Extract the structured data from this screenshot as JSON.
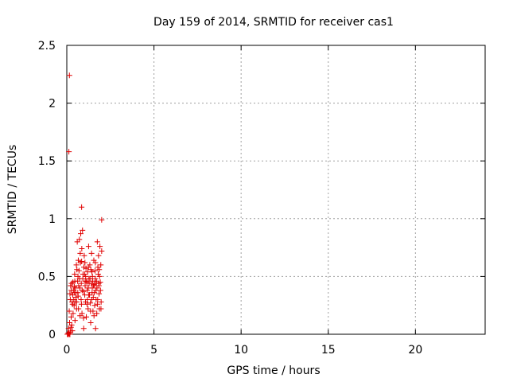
{
  "chart_data": {
    "type": "scatter",
    "title": "Day 159 of 2014, SRMTID for receiver cas1",
    "xlabel": "GPS time / hours",
    "ylabel": "SRMTID / TECUs",
    "xlim": [
      0,
      24
    ],
    "ylim": [
      0,
      2.5
    ],
    "xticks": [
      0,
      5,
      10,
      15,
      20
    ],
    "yticks": [
      0,
      0.5,
      1,
      1.5,
      2,
      2.5
    ],
    "xtick_labels": [
      "0",
      "5",
      "10",
      "15",
      "20"
    ],
    "ytick_labels": [
      "0",
      "0.5",
      "1",
      "1.5",
      "2",
      "2.5"
    ],
    "grid": true,
    "marker": "+",
    "color": "#e00000",
    "series": [
      {
        "name": "SRMTID",
        "points": [
          [
            0.15,
            2.24
          ],
          [
            0.12,
            1.58
          ],
          [
            0.85,
            1.1
          ],
          [
            2.0,
            0.99
          ],
          [
            0.03,
            0.0
          ],
          [
            0.06,
            0.0
          ],
          [
            0.09,
            0.0
          ],
          [
            0.12,
            0.01
          ],
          [
            0.15,
            0.0
          ],
          [
            0.18,
            0.0
          ],
          [
            0.21,
            0.02
          ],
          [
            0.08,
            0.01
          ],
          [
            0.1,
            0.05
          ],
          [
            0.14,
            0.2
          ],
          [
            0.18,
            0.35
          ],
          [
            0.22,
            0.42
          ],
          [
            0.25,
            0.15
          ],
          [
            0.28,
            0.08
          ],
          [
            0.3,
            0.28
          ],
          [
            0.32,
            0.03
          ],
          [
            0.35,
            0.45
          ],
          [
            0.38,
            0.38
          ],
          [
            0.4,
            0.3
          ],
          [
            0.42,
            0.25
          ],
          [
            0.45,
            0.52
          ],
          [
            0.47,
            0.12
          ],
          [
            0.5,
            0.4
          ],
          [
            0.52,
            0.36
          ],
          [
            0.55,
            0.6
          ],
          [
            0.57,
            0.28
          ],
          [
            0.6,
            0.8
          ],
          [
            0.62,
            0.46
          ],
          [
            0.65,
            0.33
          ],
          [
            0.67,
            0.22
          ],
          [
            0.7,
            0.55
          ],
          [
            0.72,
            0.82
          ],
          [
            0.75,
            0.4
          ],
          [
            0.77,
            0.7
          ],
          [
            0.8,
            0.87
          ],
          [
            0.82,
            0.3
          ],
          [
            0.85,
            0.63
          ],
          [
            0.87,
            0.18
          ],
          [
            0.9,
            0.9
          ],
          [
            0.92,
            0.48
          ],
          [
            0.95,
            0.37
          ],
          [
            0.97,
            0.05
          ],
          [
            1.0,
            0.68
          ],
          [
            1.02,
            0.52
          ],
          [
            1.05,
            0.42
          ],
          [
            1.07,
            0.28
          ],
          [
            1.1,
            0.57
          ],
          [
            1.12,
            0.15
          ],
          [
            1.15,
            0.45
          ],
          [
            1.17,
            0.38
          ],
          [
            1.2,
            0.54
          ],
          [
            1.22,
            0.22
          ],
          [
            1.25,
            0.76
          ],
          [
            1.27,
            0.48
          ],
          [
            1.3,
            0.34
          ],
          [
            1.32,
            0.6
          ],
          [
            1.35,
            0.27
          ],
          [
            1.37,
            0.1
          ],
          [
            1.4,
            0.44
          ],
          [
            1.42,
            0.7
          ],
          [
            1.45,
            0.36
          ],
          [
            1.47,
            0.5
          ],
          [
            1.5,
            0.2
          ],
          [
            1.52,
            0.32
          ],
          [
            1.55,
            0.64
          ],
          [
            1.57,
            0.43
          ],
          [
            1.6,
            0.25
          ],
          [
            1.62,
            0.55
          ],
          [
            1.65,
            0.05
          ],
          [
            1.67,
            0.38
          ],
          [
            1.7,
            0.46
          ],
          [
            1.72,
            0.18
          ],
          [
            1.75,
            0.8
          ],
          [
            1.77,
            0.3
          ],
          [
            1.8,
            0.52
          ],
          [
            1.82,
            0.68
          ],
          [
            1.85,
            0.35
          ],
          [
            1.87,
            0.22
          ],
          [
            1.9,
            0.76
          ],
          [
            1.92,
            0.45
          ],
          [
            1.95,
            0.6
          ],
          [
            1.97,
            0.28
          ],
          [
            2.0,
            0.72
          ],
          [
            0.2,
            0.3
          ],
          [
            0.27,
            0.44
          ],
          [
            0.33,
            0.26
          ],
          [
            0.43,
            0.41
          ],
          [
            0.53,
            0.32
          ],
          [
            0.63,
            0.36
          ],
          [
            0.73,
            0.48
          ],
          [
            0.83,
            0.44
          ],
          [
            0.93,
            0.52
          ],
          [
            1.03,
            0.34
          ],
          [
            1.13,
            0.46
          ],
          [
            1.23,
            0.4
          ],
          [
            1.33,
            0.48
          ],
          [
            1.43,
            0.3
          ],
          [
            1.53,
            0.42
          ],
          [
            1.63,
            0.48
          ],
          [
            1.73,
            0.4
          ],
          [
            1.83,
            0.44
          ],
          [
            1.93,
            0.38
          ],
          [
            0.48,
            0.28
          ],
          [
            0.68,
            0.42
          ],
          [
            0.88,
            0.38
          ],
          [
            1.08,
            0.5
          ],
          [
            1.28,
            0.44
          ],
          [
            1.48,
            0.46
          ],
          [
            1.68,
            0.3
          ],
          [
            1.88,
            0.5
          ],
          [
            0.58,
            0.56
          ],
          [
            0.78,
            0.62
          ],
          [
            0.98,
            0.58
          ],
          [
            1.18,
            0.3
          ],
          [
            1.38,
            0.56
          ],
          [
            1.58,
            0.36
          ],
          [
            1.78,
            0.58
          ],
          [
            0.36,
            0.18
          ],
          [
            0.56,
            0.22
          ],
          [
            0.76,
            0.16
          ],
          [
            0.96,
            0.14
          ],
          [
            1.16,
            0.26
          ],
          [
            1.36,
            0.2
          ],
          [
            1.56,
            0.16
          ],
          [
            1.76,
            0.26
          ],
          [
            1.96,
            0.22
          ],
          [
            0.44,
            0.36
          ],
          [
            0.64,
            0.5
          ],
          [
            0.84,
            0.26
          ],
          [
            1.04,
            0.62
          ],
          [
            1.24,
            0.58
          ],
          [
            1.44,
            0.54
          ],
          [
            1.64,
            0.62
          ],
          [
            1.84,
            0.42
          ],
          [
            0.26,
            0.38
          ],
          [
            0.46,
            0.46
          ],
          [
            0.66,
            0.64
          ],
          [
            0.86,
            0.74
          ],
          [
            1.06,
            0.46
          ],
          [
            1.26,
            0.34
          ],
          [
            1.46,
            0.4
          ],
          [
            1.66,
            0.44
          ],
          [
            1.86,
            0.56
          ],
          [
            0.16,
            0.1
          ],
          [
            0.24,
            0.06
          ],
          [
            0.34,
            0.34
          ]
        ]
      }
    ]
  }
}
